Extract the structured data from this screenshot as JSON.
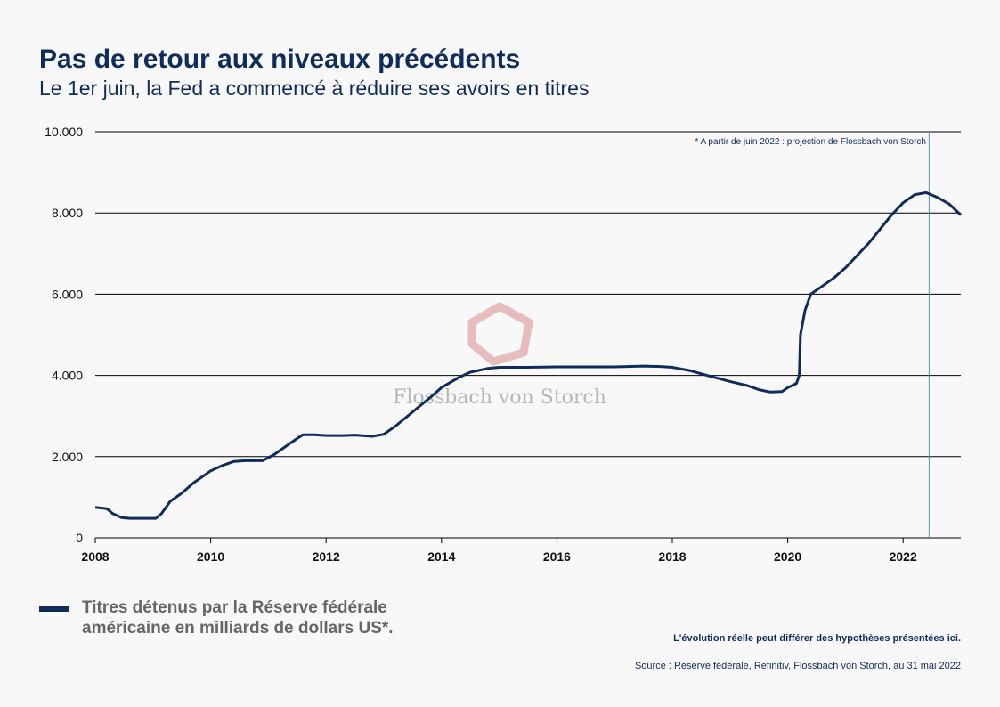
{
  "header": {
    "title": "Pas de retour aux niveaux précédents",
    "subtitle": "Le 1er juin, la Fed a commencé à réduire ses avoirs en titres"
  },
  "watermark": {
    "text": "Flossbach von Storch",
    "logo": "pentagon-logo"
  },
  "annotation": {
    "text": "* A partir de juin 2022 : projection de Flossbach von Storch"
  },
  "legend": {
    "label": "Titres détenus par la Réserve fédérale américaine en milliards de dollars US*."
  },
  "footer": {
    "disclaimer": "L'évolution réelle peut différer des hypothèses présentées ici.",
    "source": "Source : Réserve fédérale, Refinitiv, Flossbach von Storch, au 31 mai 2022"
  },
  "colors": {
    "line": "#0f2d5c",
    "grid": "#000000",
    "marker": "#5b8fad",
    "watermark": "#e3b2b2"
  },
  "chart_data": {
    "type": "line",
    "xlim": [
      2008,
      2023
    ],
    "ylim": [
      0,
      10000
    ],
    "grid": true,
    "x_ticks": [
      2008,
      2010,
      2012,
      2014,
      2016,
      2018,
      2020,
      2022
    ],
    "x_tick_labels": [
      "2008",
      "2010",
      "2012",
      "2014",
      "2016",
      "2018",
      "2020",
      "2022"
    ],
    "y_ticks": [
      0,
      2000,
      4000,
      6000,
      8000,
      10000
    ],
    "y_tick_labels": [
      "0",
      "2.000",
      "4.000",
      "6.000",
      "8.000",
      "10.000"
    ],
    "vertical_marker_x": 2022.45,
    "series": [
      {
        "points": [
          [
            2008.0,
            750
          ],
          [
            2008.2,
            720
          ],
          [
            2008.3,
            600
          ],
          [
            2008.45,
            500
          ],
          [
            2008.6,
            480
          ],
          [
            2009.05,
            480
          ],
          [
            2009.15,
            600
          ],
          [
            2009.3,
            900
          ],
          [
            2009.5,
            1100
          ],
          [
            2009.7,
            1350
          ],
          [
            2010.0,
            1650
          ],
          [
            2010.2,
            1780
          ],
          [
            2010.4,
            1880
          ],
          [
            2010.6,
            1900
          ],
          [
            2010.9,
            1900
          ],
          [
            2011.1,
            2050
          ],
          [
            2011.3,
            2250
          ],
          [
            2011.5,
            2450
          ],
          [
            2011.6,
            2540
          ],
          [
            2011.8,
            2540
          ],
          [
            2012.0,
            2520
          ],
          [
            2012.3,
            2520
          ],
          [
            2012.5,
            2530
          ],
          [
            2012.8,
            2500
          ],
          [
            2013.0,
            2550
          ],
          [
            2013.2,
            2750
          ],
          [
            2013.5,
            3100
          ],
          [
            2013.8,
            3450
          ],
          [
            2014.0,
            3700
          ],
          [
            2014.3,
            3950
          ],
          [
            2014.5,
            4080
          ],
          [
            2014.8,
            4170
          ],
          [
            2015.0,
            4200
          ],
          [
            2015.5,
            4200
          ],
          [
            2016.0,
            4210
          ],
          [
            2017.0,
            4210
          ],
          [
            2017.5,
            4230
          ],
          [
            2017.8,
            4220
          ],
          [
            2018.0,
            4200
          ],
          [
            2018.3,
            4120
          ],
          [
            2018.6,
            4000
          ],
          [
            2019.0,
            3850
          ],
          [
            2019.3,
            3750
          ],
          [
            2019.5,
            3650
          ],
          [
            2019.7,
            3590
          ],
          [
            2019.9,
            3600
          ],
          [
            2020.0,
            3700
          ],
          [
            2020.15,
            3800
          ],
          [
            2020.2,
            4000
          ],
          [
            2020.22,
            5000
          ],
          [
            2020.3,
            5600
          ],
          [
            2020.4,
            6000
          ],
          [
            2020.6,
            6200
          ],
          [
            2020.8,
            6400
          ],
          [
            2021.0,
            6650
          ],
          [
            2021.2,
            6950
          ],
          [
            2021.4,
            7250
          ],
          [
            2021.6,
            7600
          ],
          [
            2021.8,
            7950
          ],
          [
            2022.0,
            8250
          ],
          [
            2022.2,
            8450
          ],
          [
            2022.4,
            8500
          ],
          [
            2022.6,
            8380
          ],
          [
            2022.8,
            8220
          ],
          [
            2023.0,
            7950
          ]
        ]
      }
    ]
  }
}
